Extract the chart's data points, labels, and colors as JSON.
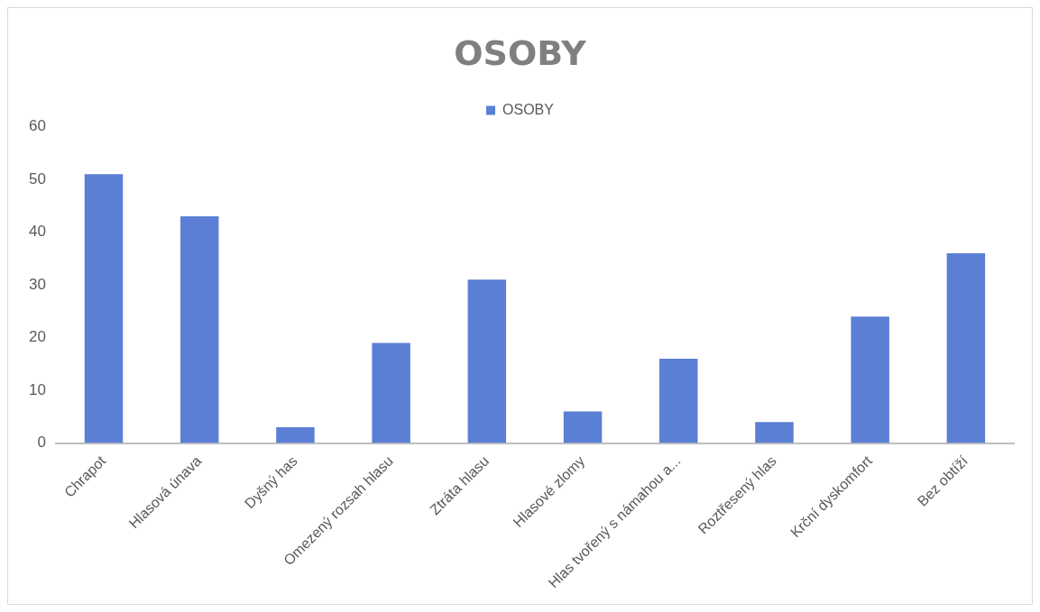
{
  "chart_data": {
    "type": "bar",
    "title": "OSOBY",
    "categories": [
      "Chrapot",
      "Hlasová únava",
      "Dyšný has",
      "Omezený rozsah hlasu",
      "Ztráta hlasu",
      "Hlasové zlomy",
      "Hlas tvořený s námahou a...",
      "Roztřesený hlas",
      "Krční dyskomfort",
      "Bez obtíží"
    ],
    "series": [
      {
        "name": "OSOBY",
        "color": "#5b7fd4",
        "values": [
          51,
          43,
          3,
          19,
          31,
          6,
          16,
          4,
          24,
          36
        ]
      }
    ],
    "ylim": [
      0,
      60
    ],
    "yticks": [
      0,
      10,
      20,
      30,
      40,
      50,
      60
    ],
    "legend": "top"
  }
}
